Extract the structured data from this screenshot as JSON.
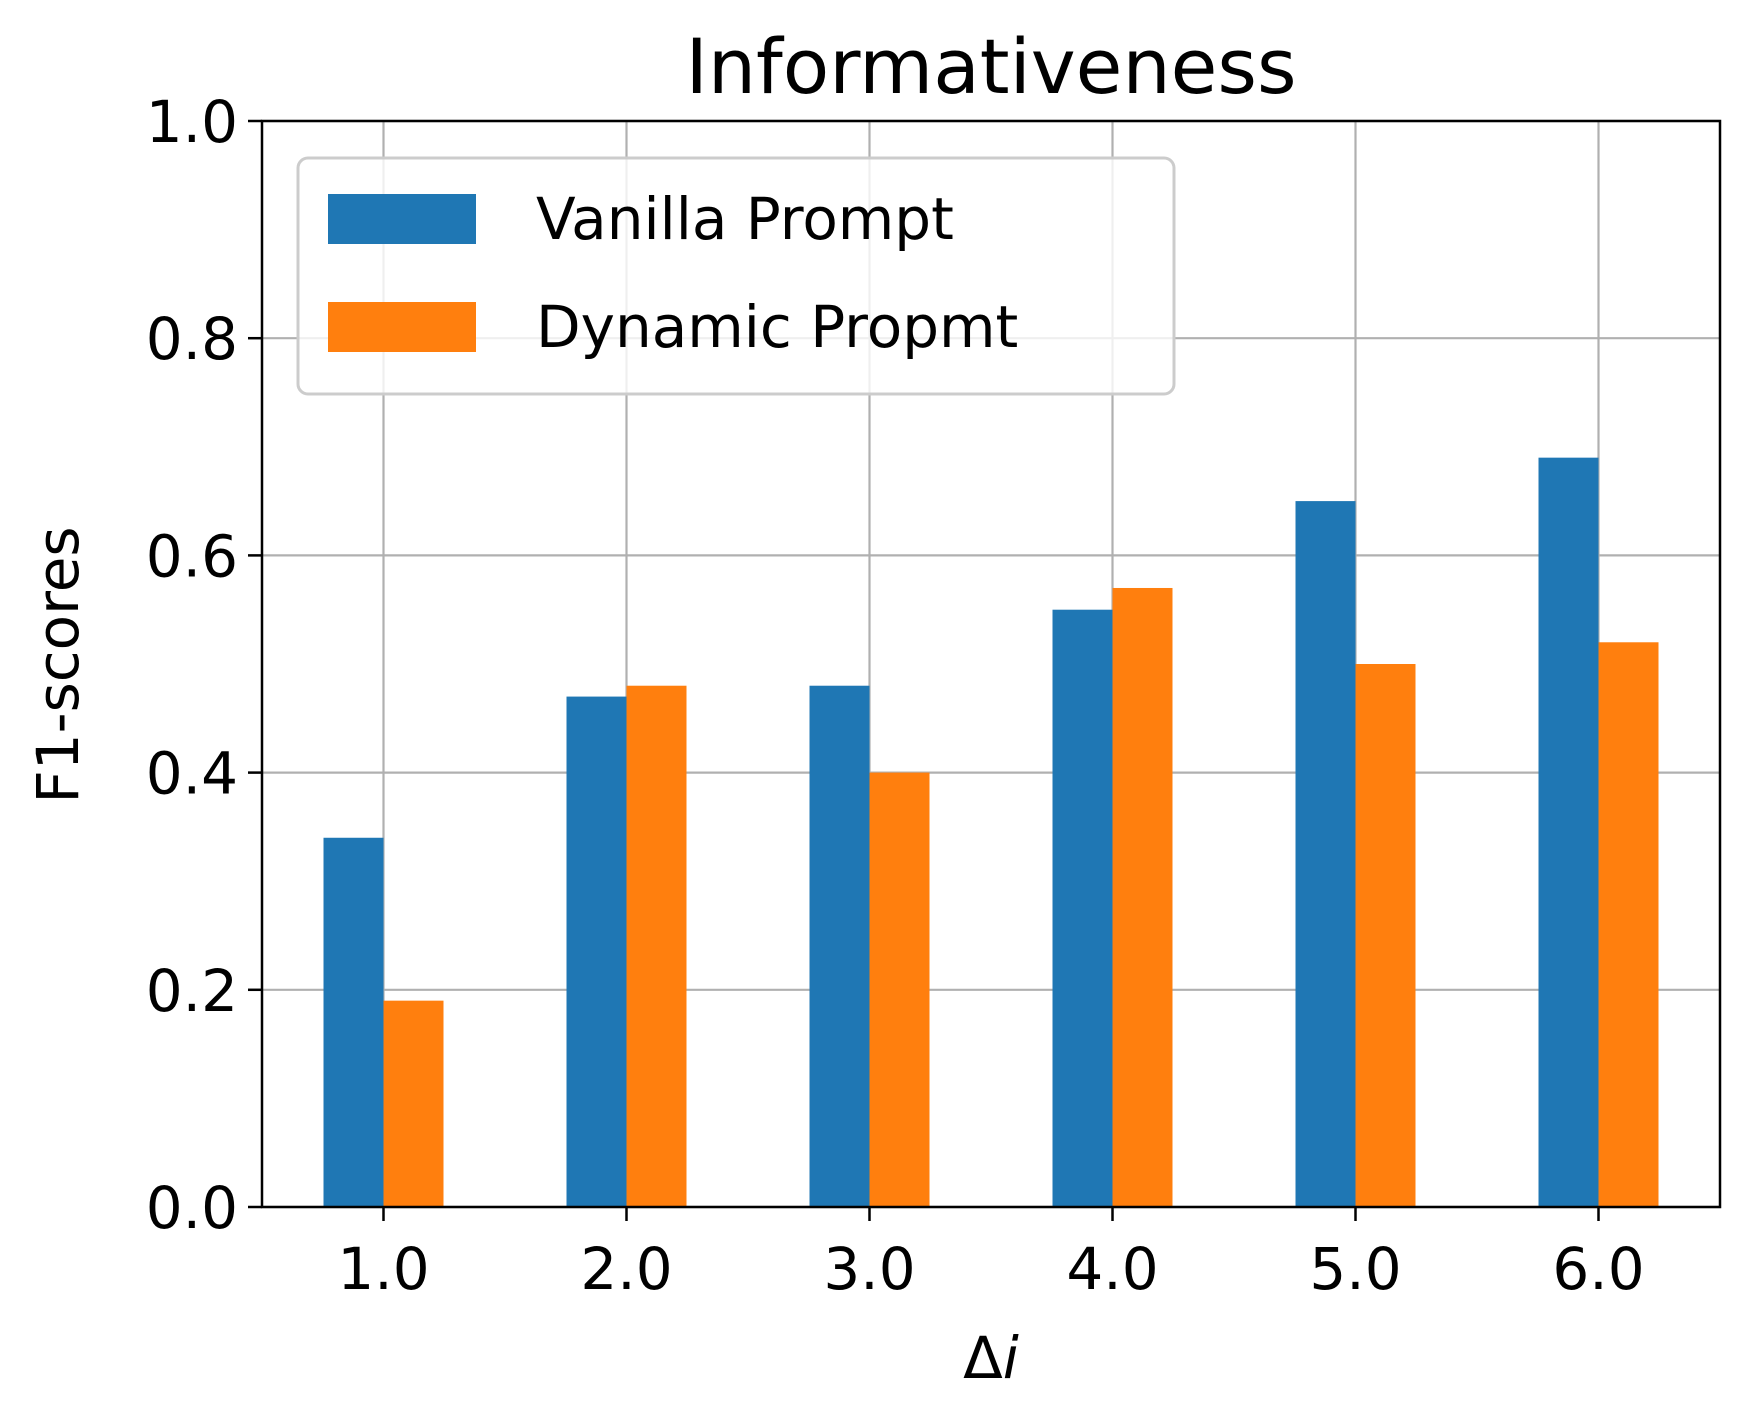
{
  "chart_data": {
    "type": "bar",
    "title": "Informativeness",
    "xlabel": "Δi",
    "ylabel": "F1-scores",
    "categories": [
      "1.0",
      "2.0",
      "3.0",
      "4.0",
      "5.0",
      "6.0"
    ],
    "series": [
      {
        "name": "Vanilla Prompt",
        "color": "#1f77b4",
        "values": [
          0.34,
          0.47,
          0.48,
          0.55,
          0.65,
          0.69
        ]
      },
      {
        "name": "Dynamic Propmt",
        "color": "#ff7f0e",
        "values": [
          0.19,
          0.48,
          0.4,
          0.57,
          0.5,
          0.52
        ]
      }
    ],
    "ylim": [
      0,
      1.0
    ],
    "yticks": [
      "0.0",
      "0.2",
      "0.4",
      "0.6",
      "0.8",
      "1.0"
    ],
    "grid": true,
    "legend_position": "top-left"
  }
}
